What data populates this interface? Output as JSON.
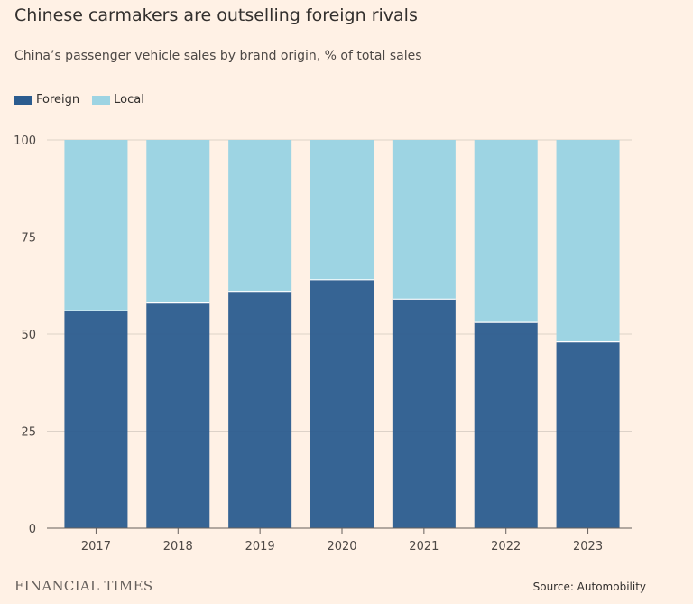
{
  "chart_data": {
    "type": "bar",
    "stacked": true,
    "title": "Chinese carmakers are outselling foreign rivals",
    "subtitle": "China’s passenger vehicle sales by brand origin, % of total sales",
    "categories": [
      "2017",
      "2018",
      "2019",
      "2020",
      "2021",
      "2022",
      "2023"
    ],
    "series": [
      {
        "name": "Foreign",
        "color": "#2b5c8f",
        "values": [
          56,
          58,
          61,
          64,
          59,
          53,
          48
        ]
      },
      {
        "name": "Local",
        "color": "#9dd4e3",
        "values": [
          44,
          42,
          39,
          36,
          41,
          47,
          52
        ]
      }
    ],
    "yticks": [
      "0",
      "25",
      "50",
      "75",
      "100"
    ],
    "ylim": [
      0,
      100
    ],
    "grid": true,
    "legend_position": "top-left"
  },
  "footer": {
    "brand": "FINANCIAL TIMES",
    "source": "Source: Automobility"
  }
}
